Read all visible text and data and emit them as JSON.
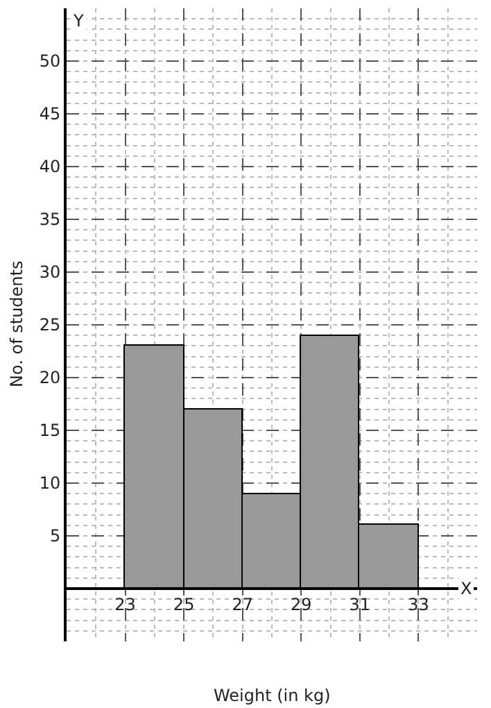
{
  "chart_data": {
    "type": "histogram",
    "xlabel": "Weight (in kg)",
    "ylabel": "No. of students",
    "bins": [
      23,
      25,
      27,
      29,
      31,
      33
    ],
    "values": [
      23,
      17,
      9,
      24,
      6
    ],
    "color": "#999999",
    "xlim": [
      21,
      35
    ],
    "xticks": [
      23,
      25,
      27,
      29,
      31,
      33
    ],
    "ylim": [
      -5,
      55
    ],
    "yticks": [
      5,
      10,
      15,
      20,
      25,
      30,
      35,
      40,
      45,
      50
    ],
    "grid": true,
    "annotations": [
      "Y",
      "X"
    ]
  }
}
